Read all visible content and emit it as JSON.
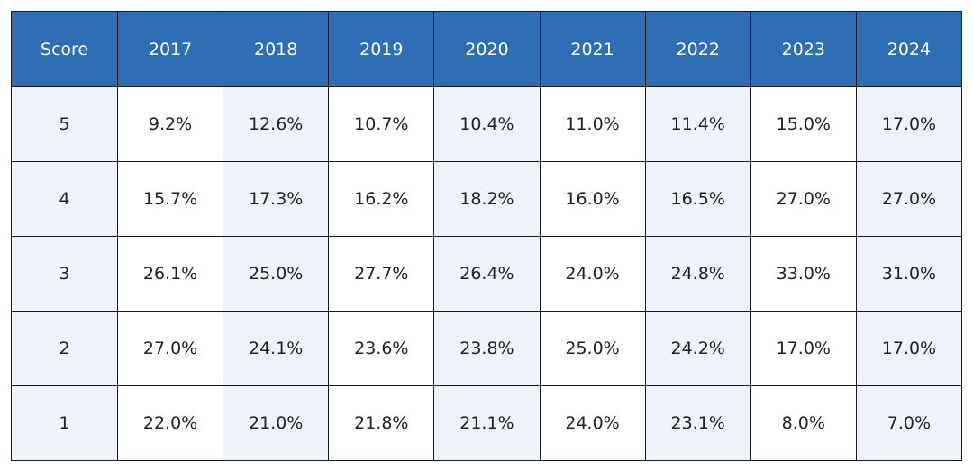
{
  "table": {
    "header": [
      "Score",
      "2017",
      "2018",
      "2019",
      "2020",
      "2021",
      "2022",
      "2023",
      "2024"
    ],
    "rows": [
      [
        "5",
        "9.2%",
        "12.6%",
        "10.7%",
        "10.4%",
        "11.0%",
        "11.4%",
        "15.0%",
        "17.0%"
      ],
      [
        "4",
        "15.7%",
        "17.3%",
        "16.2%",
        "18.2%",
        "16.0%",
        "16.5%",
        "27.0%",
        "27.0%"
      ],
      [
        "3",
        "26.1%",
        "25.0%",
        "27.7%",
        "26.4%",
        "24.0%",
        "24.8%",
        "33.0%",
        "31.0%"
      ],
      [
        "2",
        "27.0%",
        "24.1%",
        "23.6%",
        "23.8%",
        "25.0%",
        "24.2%",
        "17.0%",
        "17.0%"
      ],
      [
        "1",
        "22.0%",
        "21.0%",
        "21.8%",
        "21.1%",
        "24.0%",
        "23.1%",
        "8.0%",
        "7.0%"
      ]
    ]
  }
}
